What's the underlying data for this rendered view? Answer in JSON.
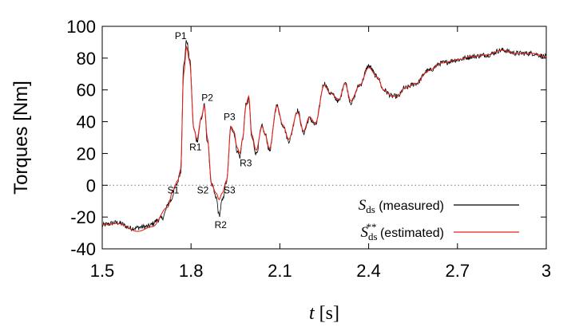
{
  "chart_data": {
    "type": "line",
    "title": "",
    "xlabel_var": "t",
    "xlabel_unit": "[s]",
    "ylabel": "Torques [Nm]",
    "xlim": [
      1.5,
      3.0
    ],
    "ylim": [
      -40,
      100
    ],
    "xticks": [
      1.5,
      1.8,
      2.1,
      2.4,
      2.7,
      3.0
    ],
    "xtick_labels": [
      "1.5",
      "1.8",
      "2.1",
      "2.4",
      "2.7",
      "3"
    ],
    "yticks": [
      -40,
      -20,
      0,
      20,
      40,
      60,
      80,
      100
    ],
    "ytick_labels": [
      "-40",
      "-20",
      "0",
      "20",
      "40",
      "60",
      "80",
      "100"
    ],
    "zero_line": "dotted",
    "grid": false,
    "legend_position": "bottom-right",
    "series": [
      {
        "symbol": "S",
        "subscript": "ds",
        "superscript": "",
        "legend_text": "(measured)",
        "color": "#000000",
        "noise": 1.6,
        "points": [
          [
            1.5,
            -25
          ],
          [
            1.55,
            -23.5
          ],
          [
            1.6,
            -27
          ],
          [
            1.65,
            -26
          ],
          [
            1.7,
            -21
          ],
          [
            1.73,
            -10
          ],
          [
            1.75,
            0
          ],
          [
            1.765,
            8
          ],
          [
            1.775,
            75
          ],
          [
            1.785,
            91
          ],
          [
            1.795,
            80
          ],
          [
            1.81,
            35
          ],
          [
            1.82,
            28
          ],
          [
            1.835,
            42
          ],
          [
            1.845,
            50
          ],
          [
            1.855,
            28
          ],
          [
            1.87,
            0
          ],
          [
            1.885,
            -8
          ],
          [
            1.895,
            -19
          ],
          [
            1.905,
            -10
          ],
          [
            1.92,
            2
          ],
          [
            1.935,
            37
          ],
          [
            1.945,
            33
          ],
          [
            1.955,
            22
          ],
          [
            1.965,
            18
          ],
          [
            1.975,
            30
          ],
          [
            1.985,
            50
          ],
          [
            1.995,
            54
          ],
          [
            2.005,
            30
          ],
          [
            2.02,
            20
          ],
          [
            2.04,
            37
          ],
          [
            2.05,
            32
          ],
          [
            2.065,
            22
          ],
          [
            2.09,
            50
          ],
          [
            2.11,
            38
          ],
          [
            2.13,
            28
          ],
          [
            2.16,
            47
          ],
          [
            2.18,
            33
          ],
          [
            2.2,
            42
          ],
          [
            2.22,
            38
          ],
          [
            2.25,
            64
          ],
          [
            2.27,
            58
          ],
          [
            2.3,
            53
          ],
          [
            2.32,
            65
          ],
          [
            2.34,
            52
          ],
          [
            2.37,
            63
          ],
          [
            2.4,
            75
          ],
          [
            2.43,
            68
          ],
          [
            2.45,
            60
          ],
          [
            2.48,
            56
          ],
          [
            2.5,
            56
          ],
          [
            2.52,
            61
          ],
          [
            2.56,
            64
          ],
          [
            2.6,
            72
          ],
          [
            2.65,
            77
          ],
          [
            2.7,
            79
          ],
          [
            2.75,
            81
          ],
          [
            2.8,
            82
          ],
          [
            2.85,
            85
          ],
          [
            2.9,
            83
          ],
          [
            2.95,
            83
          ],
          [
            3.0,
            81
          ]
        ]
      },
      {
        "symbol": "S",
        "subscript": "ds",
        "superscript": "**",
        "legend_text": "(estimated)",
        "color": "#e3231c",
        "noise": 0,
        "points": [
          [
            1.5,
            -25
          ],
          [
            1.55,
            -24
          ],
          [
            1.62,
            -29
          ],
          [
            1.67,
            -26
          ],
          [
            1.72,
            -14
          ],
          [
            1.74,
            -3
          ],
          [
            1.755,
            3
          ],
          [
            1.765,
            10
          ],
          [
            1.775,
            70
          ],
          [
            1.785,
            87
          ],
          [
            1.795,
            78
          ],
          [
            1.81,
            35
          ],
          [
            1.82,
            29
          ],
          [
            1.835,
            43
          ],
          [
            1.845,
            50
          ],
          [
            1.855,
            30
          ],
          [
            1.87,
            0
          ],
          [
            1.885,
            -5
          ],
          [
            1.895,
            -9
          ],
          [
            1.905,
            -5
          ],
          [
            1.92,
            3
          ],
          [
            1.935,
            37
          ],
          [
            1.945,
            34
          ],
          [
            1.955,
            24
          ],
          [
            1.965,
            20
          ],
          [
            1.975,
            30
          ],
          [
            1.985,
            50
          ],
          [
            1.995,
            56
          ],
          [
            2.005,
            32
          ],
          [
            2.02,
            22
          ],
          [
            2.04,
            37
          ],
          [
            2.05,
            32
          ],
          [
            2.065,
            23
          ],
          [
            2.09,
            50
          ],
          [
            2.11,
            38
          ],
          [
            2.13,
            29
          ],
          [
            2.16,
            46
          ],
          [
            2.18,
            34
          ],
          [
            2.2,
            43
          ],
          [
            2.22,
            39
          ],
          [
            2.25,
            63
          ],
          [
            2.27,
            58
          ],
          [
            2.3,
            54
          ],
          [
            2.32,
            64
          ],
          [
            2.34,
            53
          ],
          [
            2.37,
            63
          ],
          [
            2.4,
            74
          ],
          [
            2.43,
            68
          ],
          [
            2.45,
            60
          ],
          [
            2.48,
            56
          ],
          [
            2.5,
            56
          ],
          [
            2.52,
            61
          ],
          [
            2.56,
            64
          ],
          [
            2.6,
            72
          ],
          [
            2.65,
            77
          ],
          [
            2.7,
            79
          ],
          [
            2.75,
            81
          ],
          [
            2.8,
            82
          ],
          [
            2.85,
            85
          ],
          [
            2.9,
            83
          ],
          [
            2.95,
            83
          ],
          [
            3.0,
            81
          ]
        ]
      }
    ],
    "annotations": [
      {
        "text": "P1",
        "x": 1.765,
        "y": 92
      },
      {
        "text": "P2",
        "x": 1.855,
        "y": 53
      },
      {
        "text": "P3",
        "x": 1.93,
        "y": 41
      },
      {
        "text": "R1",
        "x": 1.815,
        "y": 22
      },
      {
        "text": "R2",
        "x": 1.9,
        "y": -27
      },
      {
        "text": "R3",
        "x": 1.985,
        "y": 12
      },
      {
        "text": "S1",
        "x": 1.74,
        "y": -5
      },
      {
        "text": "S2",
        "x": 1.84,
        "y": -5
      },
      {
        "text": "S3",
        "x": 1.93,
        "y": -5
      }
    ]
  }
}
